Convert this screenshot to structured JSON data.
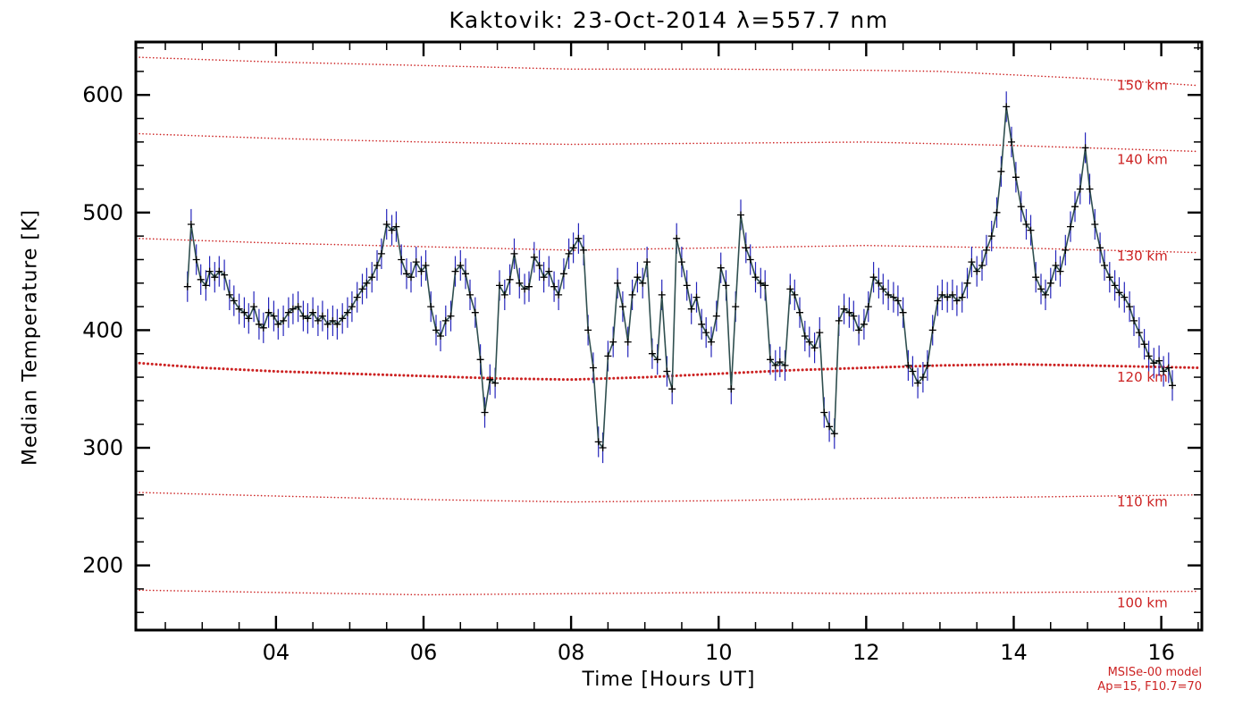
{
  "page": {
    "background": "#ffffff"
  },
  "chart_data": {
    "type": "line",
    "title": "Kaktovik: 23-Oct-2014 λ=557.7 nm",
    "xlabel": "Time [Hours UT]",
    "ylabel": "Median Temperature [K]",
    "xlim": [
      2.1,
      16.55
    ],
    "ylim": [
      145,
      645
    ],
    "grid": false,
    "legend": "none",
    "xticks": {
      "values": [
        4,
        6,
        8,
        10,
        12,
        14,
        16
      ],
      "labels": [
        "04",
        "06",
        "08",
        "10",
        "12",
        "14",
        "16"
      ],
      "minor_step": 0.5
    },
    "yticks": {
      "values": [
        200,
        300,
        400,
        500,
        600
      ],
      "labels": [
        "200",
        "300",
        "400",
        "500",
        "600"
      ],
      "minor_step": 20
    },
    "axis_color": "#000000",
    "series": {
      "name": "median-temperature",
      "line_color": "#2f4f4f",
      "marker": "plus",
      "marker_color": "#000000",
      "errorbar_color": "#2525bb",
      "yerr": 13,
      "points": [
        [
          2.8,
          437
        ],
        [
          2.85,
          490
        ],
        [
          2.92,
          460
        ],
        [
          2.98,
          443
        ],
        [
          3.05,
          438
        ],
        [
          3.1,
          450
        ],
        [
          3.17,
          445
        ],
        [
          3.23,
          450
        ],
        [
          3.3,
          447
        ],
        [
          3.37,
          430
        ],
        [
          3.43,
          425
        ],
        [
          3.5,
          418
        ],
        [
          3.57,
          415
        ],
        [
          3.63,
          410
        ],
        [
          3.7,
          420
        ],
        [
          3.77,
          405
        ],
        [
          3.83,
          402
        ],
        [
          3.9,
          415
        ],
        [
          3.97,
          412
        ],
        [
          4.03,
          405
        ],
        [
          4.1,
          408
        ],
        [
          4.17,
          415
        ],
        [
          4.23,
          418
        ],
        [
          4.3,
          420
        ],
        [
          4.37,
          412
        ],
        [
          4.43,
          410
        ],
        [
          4.5,
          415
        ],
        [
          4.57,
          408
        ],
        [
          4.63,
          412
        ],
        [
          4.7,
          405
        ],
        [
          4.77,
          408
        ],
        [
          4.83,
          405
        ],
        [
          4.9,
          410
        ],
        [
          4.97,
          415
        ],
        [
          5.03,
          420
        ],
        [
          5.1,
          428
        ],
        [
          5.17,
          435
        ],
        [
          5.23,
          440
        ],
        [
          5.3,
          445
        ],
        [
          5.37,
          455
        ],
        [
          5.43,
          465
        ],
        [
          5.5,
          490
        ],
        [
          5.57,
          485
        ],
        [
          5.63,
          488
        ],
        [
          5.7,
          460
        ],
        [
          5.77,
          448
        ],
        [
          5.83,
          445
        ],
        [
          5.9,
          458
        ],
        [
          5.97,
          450
        ],
        [
          6.03,
          455
        ],
        [
          6.1,
          420
        ],
        [
          6.17,
          400
        ],
        [
          6.23,
          395
        ],
        [
          6.3,
          408
        ],
        [
          6.37,
          412
        ],
        [
          6.43,
          450
        ],
        [
          6.5,
          455
        ],
        [
          6.57,
          448
        ],
        [
          6.63,
          430
        ],
        [
          6.7,
          415
        ],
        [
          6.77,
          375
        ],
        [
          6.83,
          330
        ],
        [
          6.9,
          358
        ],
        [
          6.97,
          355
        ],
        [
          7.03,
          438
        ],
        [
          7.1,
          430
        ],
        [
          7.17,
          443
        ],
        [
          7.23,
          465
        ],
        [
          7.3,
          440
        ],
        [
          7.37,
          435
        ],
        [
          7.43,
          437
        ],
        [
          7.5,
          462
        ],
        [
          7.57,
          455
        ],
        [
          7.63,
          445
        ],
        [
          7.7,
          450
        ],
        [
          7.77,
          437
        ],
        [
          7.83,
          430
        ],
        [
          7.9,
          448
        ],
        [
          7.97,
          465
        ],
        [
          8.03,
          470
        ],
        [
          8.1,
          478
        ],
        [
          8.17,
          468
        ],
        [
          8.23,
          400
        ],
        [
          8.3,
          368
        ],
        [
          8.37,
          305
        ],
        [
          8.43,
          300
        ],
        [
          8.5,
          378
        ],
        [
          8.57,
          390
        ],
        [
          8.63,
          440
        ],
        [
          8.7,
          420
        ],
        [
          8.77,
          390
        ],
        [
          8.83,
          430
        ],
        [
          8.9,
          445
        ],
        [
          8.97,
          440
        ],
        [
          9.03,
          458
        ],
        [
          9.1,
          380
        ],
        [
          9.17,
          375
        ],
        [
          9.23,
          430
        ],
        [
          9.3,
          365
        ],
        [
          9.37,
          350
        ],
        [
          9.43,
          478
        ],
        [
          9.5,
          458
        ],
        [
          9.57,
          438
        ],
        [
          9.63,
          418
        ],
        [
          9.7,
          428
        ],
        [
          9.77,
          405
        ],
        [
          9.83,
          398
        ],
        [
          9.9,
          390
        ],
        [
          9.97,
          412
        ],
        [
          10.03,
          453
        ],
        [
          10.1,
          438
        ],
        [
          10.17,
          350
        ],
        [
          10.23,
          420
        ],
        [
          10.3,
          498
        ],
        [
          10.37,
          470
        ],
        [
          10.43,
          460
        ],
        [
          10.5,
          445
        ],
        [
          10.57,
          440
        ],
        [
          10.63,
          438
        ],
        [
          10.7,
          375
        ],
        [
          10.77,
          370
        ],
        [
          10.83,
          373
        ],
        [
          10.9,
          370
        ],
        [
          10.97,
          435
        ],
        [
          11.03,
          430
        ],
        [
          11.1,
          415
        ],
        [
          11.17,
          395
        ],
        [
          11.23,
          390
        ],
        [
          11.3,
          385
        ],
        [
          11.37,
          398
        ],
        [
          11.43,
          330
        ],
        [
          11.5,
          318
        ],
        [
          11.57,
          312
        ],
        [
          11.63,
          408
        ],
        [
          11.7,
          418
        ],
        [
          11.77,
          415
        ],
        [
          11.83,
          412
        ],
        [
          11.9,
          400
        ],
        [
          11.97,
          405
        ],
        [
          12.03,
          420
        ],
        [
          12.1,
          445
        ],
        [
          12.17,
          440
        ],
        [
          12.23,
          435
        ],
        [
          12.3,
          430
        ],
        [
          12.37,
          428
        ],
        [
          12.43,
          425
        ],
        [
          12.5,
          415
        ],
        [
          12.57,
          370
        ],
        [
          12.63,
          365
        ],
        [
          12.7,
          355
        ],
        [
          12.77,
          360
        ],
        [
          12.83,
          370
        ],
        [
          12.9,
          400
        ],
        [
          12.97,
          425
        ],
        [
          13.03,
          430
        ],
        [
          13.1,
          428
        ],
        [
          13.17,
          430
        ],
        [
          13.23,
          425
        ],
        [
          13.3,
          428
        ],
        [
          13.37,
          440
        ],
        [
          13.43,
          458
        ],
        [
          13.5,
          450
        ],
        [
          13.57,
          455
        ],
        [
          13.63,
          468
        ],
        [
          13.7,
          480
        ],
        [
          13.77,
          500
        ],
        [
          13.83,
          535
        ],
        [
          13.9,
          590
        ],
        [
          13.97,
          560
        ],
        [
          14.03,
          530
        ],
        [
          14.1,
          505
        ],
        [
          14.17,
          490
        ],
        [
          14.23,
          485
        ],
        [
          14.3,
          445
        ],
        [
          14.37,
          435
        ],
        [
          14.43,
          430
        ],
        [
          14.5,
          440
        ],
        [
          14.57,
          455
        ],
        [
          14.63,
          450
        ],
        [
          14.7,
          468
        ],
        [
          14.77,
          488
        ],
        [
          14.83,
          505
        ],
        [
          14.9,
          520
        ],
        [
          14.97,
          555
        ],
        [
          15.03,
          520
        ],
        [
          15.1,
          490
        ],
        [
          15.17,
          470
        ],
        [
          15.23,
          455
        ],
        [
          15.3,
          445
        ],
        [
          15.37,
          438
        ],
        [
          15.43,
          432
        ],
        [
          15.5,
          428
        ],
        [
          15.57,
          420
        ],
        [
          15.63,
          408
        ],
        [
          15.7,
          398
        ],
        [
          15.77,
          388
        ],
        [
          15.83,
          378
        ],
        [
          15.9,
          372
        ],
        [
          15.97,
          374
        ],
        [
          16.03,
          365
        ],
        [
          16.1,
          368
        ],
        [
          16.15,
          353
        ]
      ]
    },
    "reference_lines": [
      {
        "label": "150 km",
        "label_value": 608,
        "color": "#cc2222",
        "emphasis": false,
        "points": [
          [
            2.15,
            632
          ],
          [
            4,
            628
          ],
          [
            6,
            625
          ],
          [
            8,
            622
          ],
          [
            10,
            622
          ],
          [
            12,
            621
          ],
          [
            13,
            620
          ],
          [
            14,
            617
          ],
          [
            15,
            614
          ],
          [
            16.5,
            608
          ]
        ]
      },
      {
        "label": "140 km",
        "label_value": 545,
        "color": "#cc2222",
        "emphasis": false,
        "points": [
          [
            2.15,
            567
          ],
          [
            4,
            563
          ],
          [
            6,
            560
          ],
          [
            8,
            558
          ],
          [
            10,
            559
          ],
          [
            12,
            560
          ],
          [
            14,
            557
          ],
          [
            16.5,
            552
          ]
        ]
      },
      {
        "label": "130 km",
        "label_value": 463,
        "color": "#cc2222",
        "emphasis": false,
        "points": [
          [
            2.15,
            478
          ],
          [
            4,
            474
          ],
          [
            6,
            471
          ],
          [
            8,
            468
          ],
          [
            10,
            470
          ],
          [
            12,
            472
          ],
          [
            14,
            470
          ],
          [
            16.5,
            466
          ]
        ]
      },
      {
        "label": "120 km",
        "label_value": 360,
        "color": "#cc2222",
        "emphasis": true,
        "points": [
          [
            2.15,
            372
          ],
          [
            3,
            368
          ],
          [
            4,
            365
          ],
          [
            5,
            363
          ],
          [
            6,
            361
          ],
          [
            7,
            359
          ],
          [
            8,
            358
          ],
          [
            9,
            360
          ],
          [
            10,
            363
          ],
          [
            11,
            366
          ],
          [
            12,
            368
          ],
          [
            13,
            370
          ],
          [
            14,
            371
          ],
          [
            15,
            370
          ],
          [
            16.5,
            368
          ]
        ]
      },
      {
        "label": "110 km",
        "label_value": 254,
        "color": "#cc2222",
        "emphasis": false,
        "points": [
          [
            2.15,
            262
          ],
          [
            4,
            259
          ],
          [
            6,
            256
          ],
          [
            8,
            254
          ],
          [
            10,
            255
          ],
          [
            12,
            257
          ],
          [
            14,
            258
          ],
          [
            16.5,
            260
          ]
        ]
      },
      {
        "label": "100 km",
        "label_value": 168,
        "color": "#cc2222",
        "emphasis": false,
        "points": [
          [
            2.15,
            179
          ],
          [
            4,
            177
          ],
          [
            6,
            175
          ],
          [
            8,
            176
          ],
          [
            10,
            177
          ],
          [
            12,
            176
          ],
          [
            14,
            177
          ],
          [
            16.5,
            178
          ]
        ]
      }
    ],
    "annotation": {
      "line1": "MSISe-00 model",
      "line2": "Ap=15, F10.7=70",
      "color": "#cc2222"
    }
  }
}
